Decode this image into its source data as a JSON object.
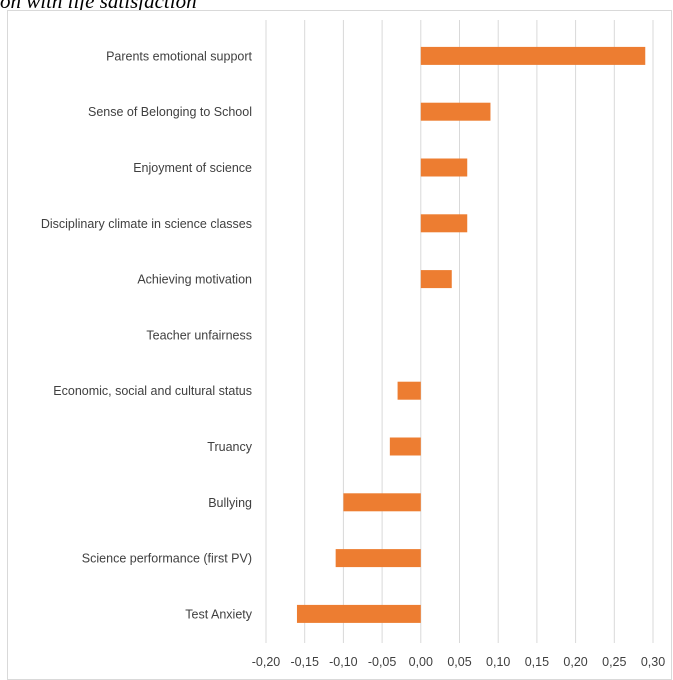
{
  "caption": "on with life satisfaction",
  "chart_data": {
    "type": "bar",
    "orientation": "horizontal",
    "title": "",
    "categories": [
      "Parents emotional support",
      "Sense of Belonging to School",
      "Enjoyment of science",
      "Disciplinary climate in science classes",
      "Achieving motivation",
      "Teacher unfairness",
      "Economic, social and cultural status",
      "Truancy",
      "Bullying",
      "Science performance (first PV)",
      "Test Anxiety"
    ],
    "values": [
      0.29,
      0.09,
      0.06,
      0.06,
      0.04,
      0.0,
      -0.03,
      -0.04,
      -0.1,
      -0.11,
      -0.16
    ],
    "xlim": [
      -0.2,
      0.3
    ],
    "xticks": [
      "-0,20",
      "-0,15",
      "-0,10",
      "-0,05",
      "0,00",
      "0,05",
      "0,10",
      "0,15",
      "0,20",
      "0,25",
      "0,30"
    ],
    "xtick_values": [
      -0.2,
      -0.15,
      -0.1,
      -0.05,
      0.0,
      0.05,
      0.1,
      0.15,
      0.2,
      0.25,
      0.3
    ],
    "grid": "vertical",
    "bar_color": "#ED7D31",
    "grid_color": "#d9d9d9"
  }
}
